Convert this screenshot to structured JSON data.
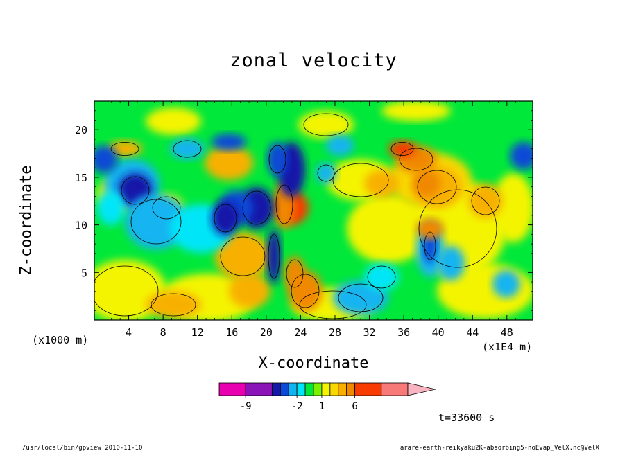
{
  "figure": {
    "title": "zonal velocity",
    "xlabel": "X-coordinate",
    "ylabel": "Z-coordinate",
    "x_unit_left": "(x1000 m)",
    "x_unit_right": "(x1E4 m)",
    "time_label": "t=33600 s",
    "footer_left": "/usr/local/bin/gpview  2010-11-10",
    "footer_right": "arare-earth-reikyaku2K-absorbing5-noEvap_VelX.nc@VelX"
  },
  "chart_data": {
    "type": "heatmap",
    "title": "zonal velocity",
    "xlabel": "X-coordinate",
    "ylabel": "Z-coordinate",
    "xlim": [
      0,
      51
    ],
    "ylim": [
      0,
      23
    ],
    "x_ticks": [
      "4",
      "8",
      "12",
      "16",
      "20",
      "24",
      "28",
      "32",
      "36",
      "40",
      "44",
      "48"
    ],
    "x_tick_values": [
      4,
      8,
      12,
      16,
      20,
      24,
      28,
      32,
      36,
      40,
      44,
      48
    ],
    "y_ticks": [
      "5",
      "10",
      "15",
      "20"
    ],
    "y_tick_values": [
      5,
      10,
      15,
      20
    ],
    "colorbar": {
      "levels": [
        -12,
        -9,
        -6,
        -4,
        -3,
        -2,
        -1,
        0,
        1,
        2,
        3,
        4,
        6,
        9,
        12
      ],
      "labels": [
        "-9",
        "-2",
        "1",
        "6"
      ],
      "label_values": [
        -9,
        -2,
        1,
        6
      ],
      "colors": [
        "#e800b0",
        "#8a14b8",
        "#1818a8",
        "#0b49d6",
        "#12b4f0",
        "#00e6f8",
        "#00e83a",
        "#7cf000",
        "#f4f400",
        "#f8d800",
        "#f8b000",
        "#f08800",
        "#f83c00",
        "#f87a78",
        "#f8b4c0"
      ],
      "extend": "max"
    },
    "grid": false
  },
  "colors": {
    "background": "#ffffff",
    "frame": "#000000"
  }
}
